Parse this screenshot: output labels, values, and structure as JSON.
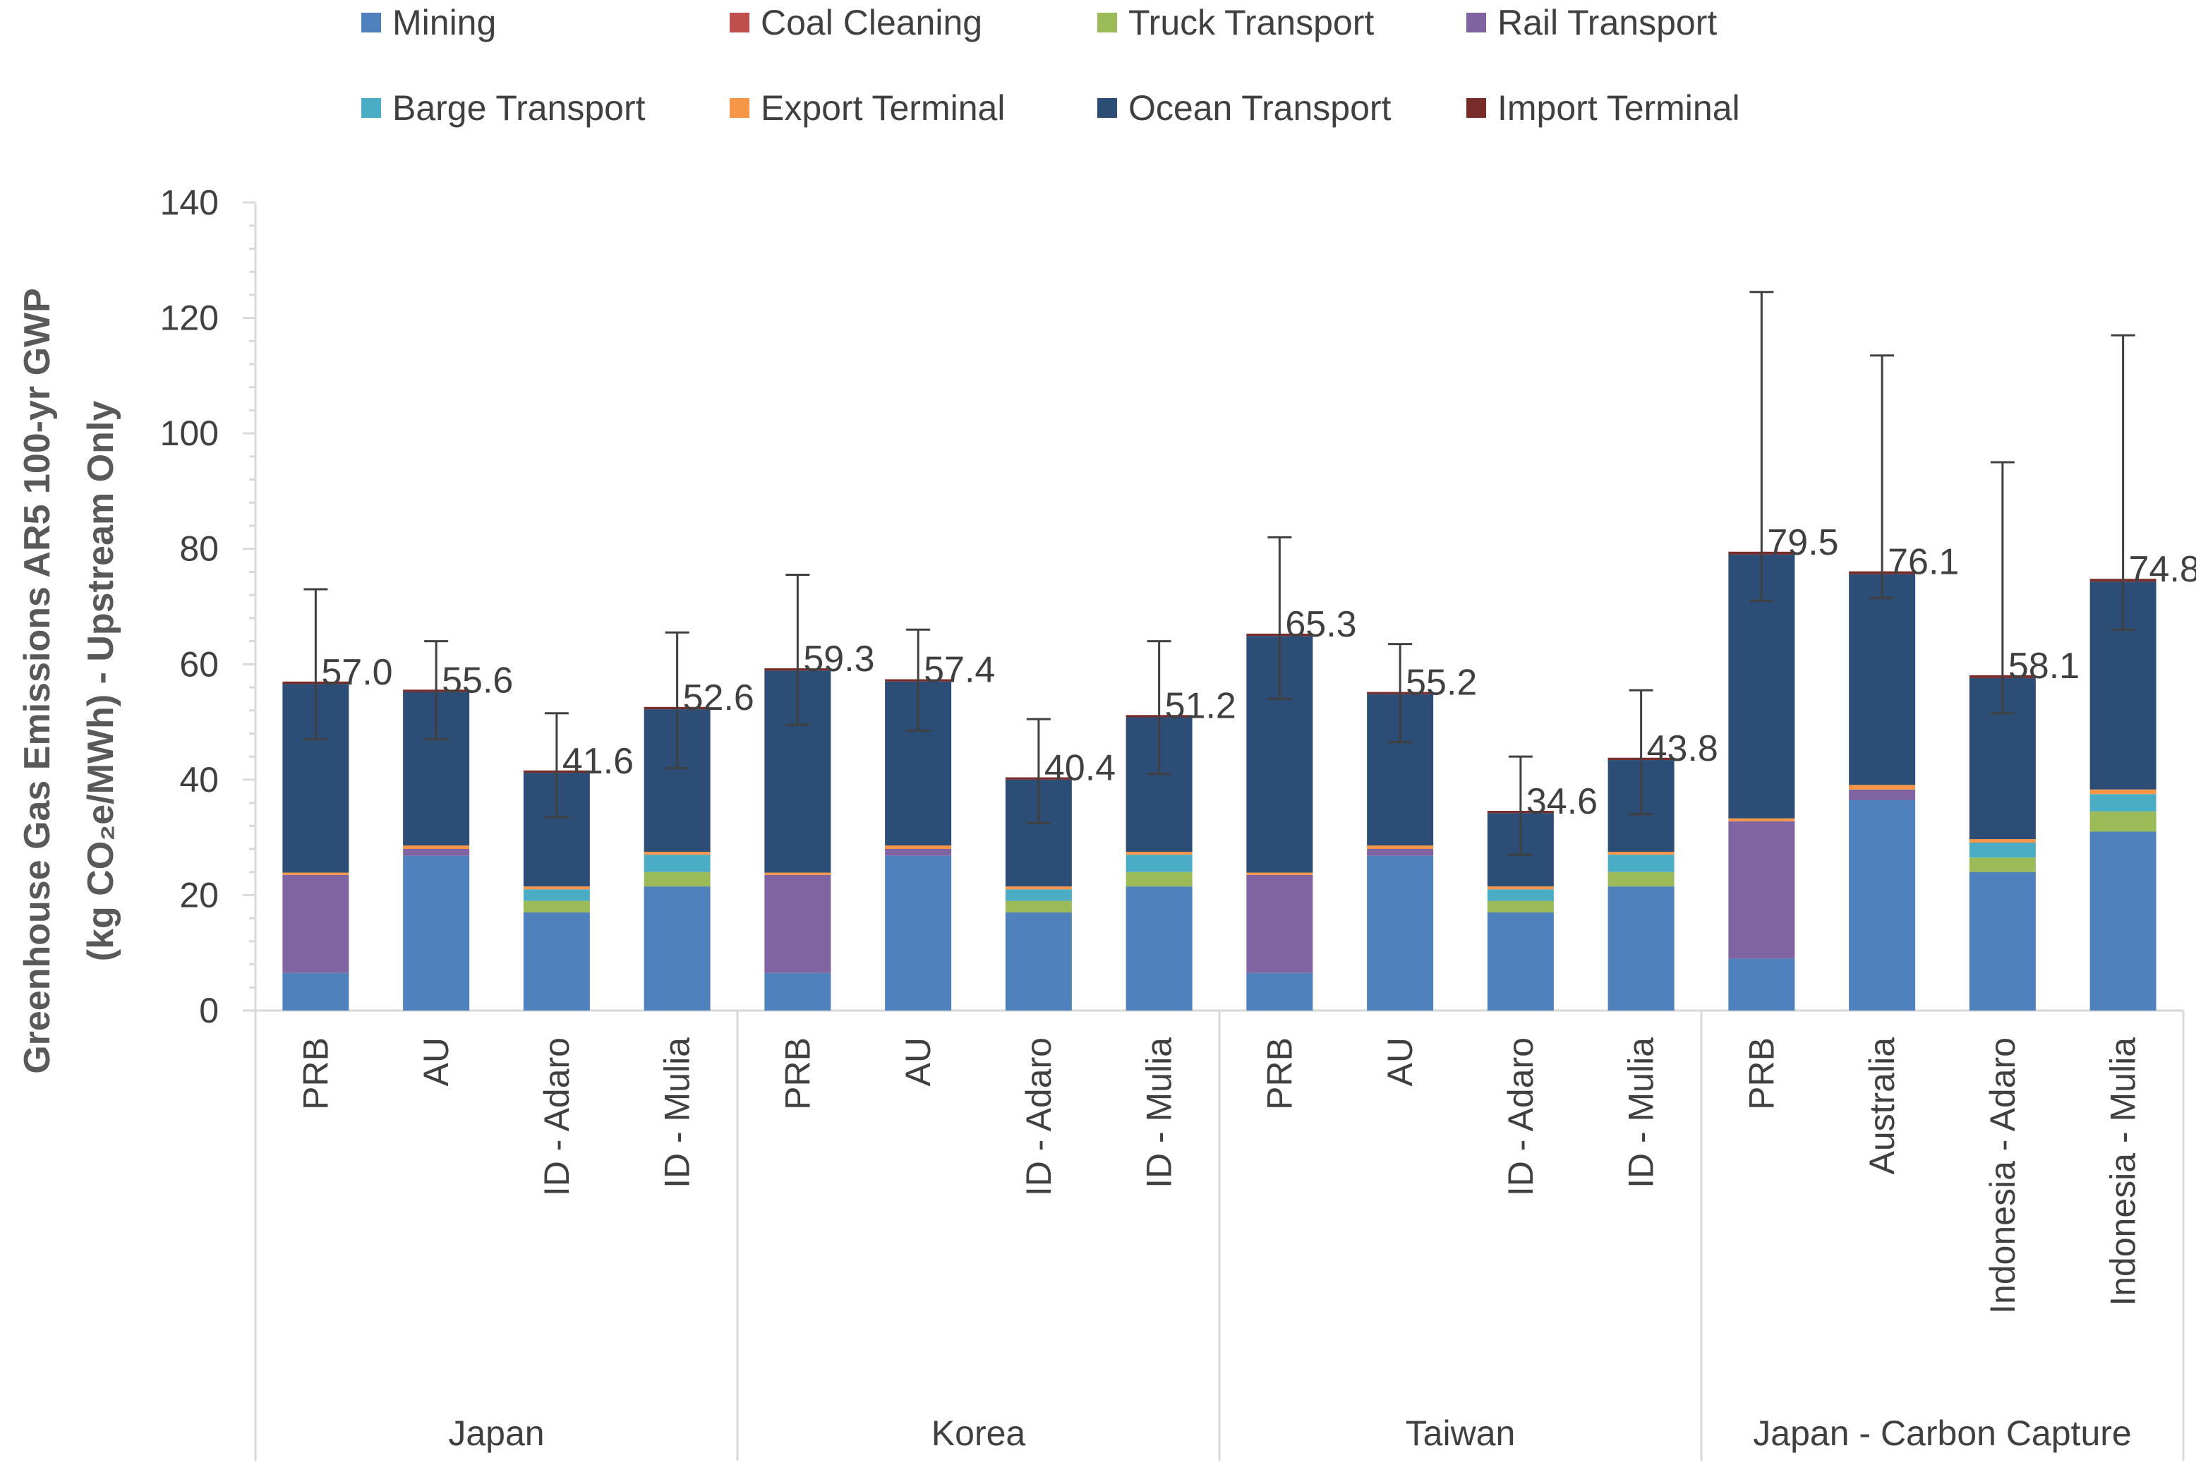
{
  "chart_data": {
    "type": "bar",
    "stacked": true,
    "ylabel_line1": "Greenhouse Gas Emissions AR5 100-yr GWP",
    "ylabel_line2": "(kg CO₂e/MWh) - Upstream Only",
    "ylim": [
      0,
      140
    ],
    "yticks": [
      "0",
      "20",
      "40",
      "60",
      "80",
      "100",
      "120",
      "140"
    ],
    "legend_position": "top",
    "groups": [
      {
        "name": "Japan",
        "categories": [
          "PRB",
          "AU",
          "ID - Adaro",
          "ID - Mulia"
        ]
      },
      {
        "name": "Korea",
        "categories": [
          "PRB",
          "AU",
          "ID - Adaro",
          "ID - Mulia"
        ]
      },
      {
        "name": "Taiwan",
        "categories": [
          "PRB",
          "AU",
          "ID - Adaro",
          "ID - Mulia"
        ]
      },
      {
        "name": "Japan - Carbon Capture",
        "categories": [
          "PRB",
          "Australia",
          "Indonesia - Adaro",
          "Indonesia - Mulia"
        ]
      }
    ],
    "series": [
      {
        "name": "Mining",
        "color": "#4F81BD",
        "values": [
          6.5,
          26.8,
          17.0,
          21.5,
          6.5,
          26.8,
          17.0,
          21.5,
          6.5,
          26.8,
          17.0,
          21.5,
          9.0,
          36.5,
          24.0,
          31.0
        ]
      },
      {
        "name": "Coal Cleaning",
        "color": "#C0504D",
        "values": [
          0,
          0,
          0,
          0,
          0,
          0,
          0,
          0,
          0,
          0,
          0,
          0,
          0,
          0,
          0,
          0
        ]
      },
      {
        "name": "Truck Transport",
        "color": "#9BBB59",
        "values": [
          0,
          0,
          2.0,
          2.5,
          0,
          0,
          2.0,
          2.5,
          0,
          0,
          2.0,
          2.5,
          0,
          0,
          2.5,
          3.5
        ]
      },
      {
        "name": "Rail Transport",
        "color": "#8064A2",
        "values": [
          17.0,
          1.2,
          0,
          0,
          17.0,
          1.2,
          0,
          0,
          17.0,
          1.2,
          0,
          0,
          23.8,
          1.8,
          0,
          0
        ]
      },
      {
        "name": "Barge Transport",
        "color": "#4BACC6",
        "values": [
          0,
          0,
          2.0,
          3.0,
          0,
          0,
          2.0,
          3.0,
          0,
          0,
          2.0,
          3.0,
          0,
          0,
          2.6,
          3.0
        ]
      },
      {
        "name": "Export Terminal",
        "color": "#F79646",
        "values": [
          0.4,
          0.6,
          0.5,
          0.5,
          0.4,
          0.6,
          0.5,
          0.5,
          0.4,
          0.6,
          0.5,
          0.5,
          0.5,
          0.8,
          0.6,
          0.8
        ]
      },
      {
        "name": "Ocean Transport",
        "color": "#2C4D75",
        "values": [
          32.7,
          26.6,
          19.7,
          24.7,
          35.0,
          28.4,
          18.5,
          23.3,
          41.0,
          26.2,
          12.7,
          15.9,
          45.7,
          36.5,
          27.9,
          36.0
        ]
      },
      {
        "name": "Import Terminal",
        "color": "#772C2A",
        "values": [
          0.4,
          0.4,
          0.4,
          0.4,
          0.4,
          0.4,
          0.4,
          0.4,
          0.4,
          0.4,
          0.4,
          0.4,
          0.5,
          0.5,
          0.5,
          0.5
        ]
      }
    ],
    "totals": [
      "57.0",
      "55.6",
      "41.6",
      "52.6",
      "59.3",
      "57.4",
      "40.4",
      "51.2",
      "65.3",
      "55.2",
      "34.6",
      "43.8",
      "79.5",
      "76.1",
      "58.1",
      "74.8"
    ],
    "total_values": [
      57.0,
      55.6,
      41.6,
      52.6,
      59.3,
      57.4,
      40.4,
      51.2,
      65.3,
      55.2,
      34.6,
      43.8,
      79.5,
      76.1,
      58.1,
      74.8
    ],
    "error_low": [
      47,
      47,
      33.5,
      42,
      49.5,
      48.5,
      32.5,
      41,
      54,
      46.5,
      27,
      34,
      71,
      71.5,
      51.5,
      66
    ],
    "error_high": [
      73,
      64,
      51.5,
      65.5,
      75.5,
      66,
      50.5,
      64,
      82,
      63.5,
      44,
      55.5,
      124.5,
      113.5,
      95,
      117
    ]
  }
}
